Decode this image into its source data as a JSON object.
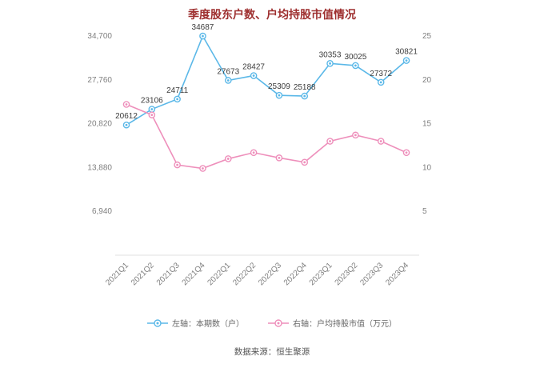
{
  "title": "季度股东户数、户均持股市值情况",
  "footer": "数据来源：恒生聚源",
  "colors": {
    "title": "#9E2F2F",
    "series_blue": "#5BB8E8",
    "series_pink": "#EE8FBB",
    "axis_text": "#7F7F7F",
    "label_text": "#3C3C3C",
    "axis_line": "#E0E0E0"
  },
  "chart_data": {
    "type": "line",
    "title": "季度股东户数、户均持股市值情况",
    "categories": [
      "2021Q1",
      "2021Q2",
      "2021Q3",
      "2021Q4",
      "2022Q1",
      "2022Q2",
      "2022Q3",
      "2022Q4",
      "2023Q1",
      "2023Q2",
      "2023Q3",
      "2023Q4"
    ],
    "series": [
      {
        "name": "左轴：本期数（户）",
        "axis": "left",
        "color": "#5BB8E8",
        "show_labels": true,
        "values": [
          20612,
          23106,
          24711,
          34687,
          27673,
          28427,
          25309,
          25188,
          30353,
          30025,
          27372,
          30821
        ]
      },
      {
        "name": "右轴：户均持股市值（万元）",
        "axis": "right",
        "color": "#EE8FBB",
        "show_labels": false,
        "values": [
          17.2,
          16.0,
          10.3,
          9.9,
          11.0,
          11.7,
          11.1,
          10.6,
          13.0,
          13.7,
          13.0,
          11.7
        ]
      }
    ],
    "left_axis": {
      "min": 0,
      "max": 34700,
      "ticks": [
        6940,
        13880,
        20820,
        27760,
        34700
      ],
      "tick_labels": [
        "6,940",
        "13,880",
        "20,820",
        "27,760",
        "34,700"
      ]
    },
    "right_axis": {
      "min": 0,
      "max": 25,
      "ticks": [
        5,
        10,
        15,
        20,
        25
      ],
      "tick_labels": [
        "5",
        "10",
        "15",
        "20",
        "25"
      ]
    },
    "grid": false,
    "legend_position": "bottom"
  }
}
